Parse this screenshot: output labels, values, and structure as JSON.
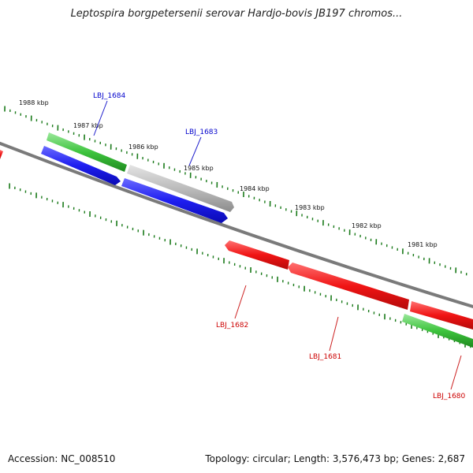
{
  "title": "Leptospira borgpetersenii serovar Hardjo-bovis JB197 chromos...",
  "accession_text": "Accession: NC_008510",
  "summary_text": "Topology: circular; Length: 3,576,473 bp; Genes: 2,687",
  "colors": {
    "backbone": "#808080",
    "tick": "#1a7a1a",
    "forward_cds": "#2020ee",
    "reverse_cds": "#ee1010",
    "gene": "#33bb33",
    "other": "#b4b4b4",
    "forward_label": "#0000cc",
    "reverse_label": "#cc0000"
  },
  "kbp_labels": [
    "1988 kbp",
    "1987 kbp",
    "1986 kbp",
    "1985 kbp",
    "1984 kbp",
    "1983 kbp",
    "1982 kbp",
    "1981 kbp"
  ],
  "features": [
    {
      "track": "green",
      "strand": "forward"
    },
    {
      "track": "green",
      "strand": "reverse"
    },
    {
      "track": "blue",
      "strand": "forward"
    },
    {
      "track": "blue",
      "strand": "forward"
    },
    {
      "track": "gray",
      "strand": "forward"
    },
    {
      "track": "red",
      "strand": "reverse"
    },
    {
      "track": "red",
      "strand": "reverse"
    },
    {
      "track": "red",
      "strand": "reverse"
    },
    {
      "track": "red",
      "strand": "reverse"
    }
  ],
  "gene_labels": [
    {
      "name": "LBJ_1684",
      "strand": "forward"
    },
    {
      "name": "LBJ_1683",
      "strand": "forward"
    },
    {
      "name": "LBJ_1682",
      "strand": "reverse"
    },
    {
      "name": "LBJ_1681",
      "strand": "reverse"
    },
    {
      "name": "LBJ_1680",
      "strand": "reverse"
    }
  ]
}
